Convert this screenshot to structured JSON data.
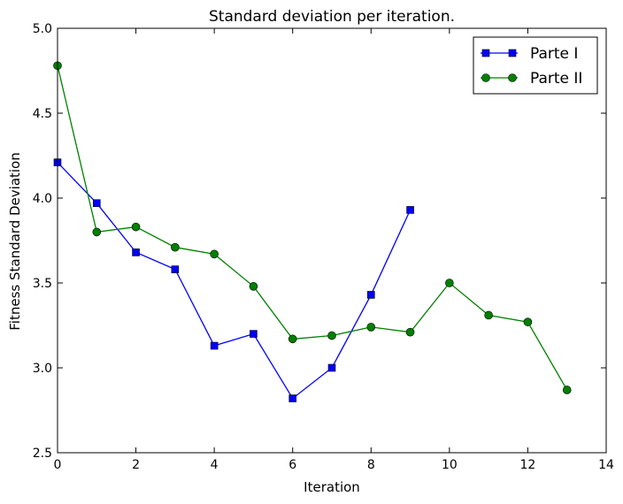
{
  "chart_data": {
    "type": "line",
    "title": "Standard deviation per iteration.",
    "xlabel": "Iteration",
    "ylabel": "Fitness Standard Deviation",
    "xlim": [
      0,
      14
    ],
    "ylim": [
      2.5,
      5.0
    ],
    "xticks": [
      0,
      2,
      4,
      6,
      8,
      10,
      12,
      14
    ],
    "yticks": [
      2.5,
      3.0,
      3.5,
      4.0,
      4.5,
      5.0
    ],
    "xtick_labels": [
      "0",
      "2",
      "4",
      "6",
      "8",
      "10",
      "12",
      "14"
    ],
    "ytick_labels": [
      "2.5",
      "3.0",
      "3.5",
      "4.0",
      "4.5",
      "5.0"
    ],
    "grid": false,
    "legend_position": "top-right",
    "series": [
      {
        "name": "Parte I",
        "color": "#0000ff",
        "marker": "square",
        "x": [
          0,
          1,
          2,
          3,
          4,
          5,
          6,
          7,
          8,
          9
        ],
        "values": [
          4.21,
          3.97,
          3.68,
          3.58,
          3.13,
          3.2,
          2.82,
          3.0,
          3.43,
          3.93
        ]
      },
      {
        "name": "Parte II",
        "color": "#008000",
        "marker": "circle",
        "x": [
          0,
          1,
          2,
          3,
          4,
          5,
          6,
          7,
          8,
          9,
          10,
          11,
          12,
          13
        ],
        "values": [
          4.78,
          3.8,
          3.83,
          3.71,
          3.67,
          3.48,
          3.17,
          3.19,
          3.24,
          3.21,
          3.5,
          3.31,
          3.27,
          2.87
        ]
      }
    ]
  }
}
